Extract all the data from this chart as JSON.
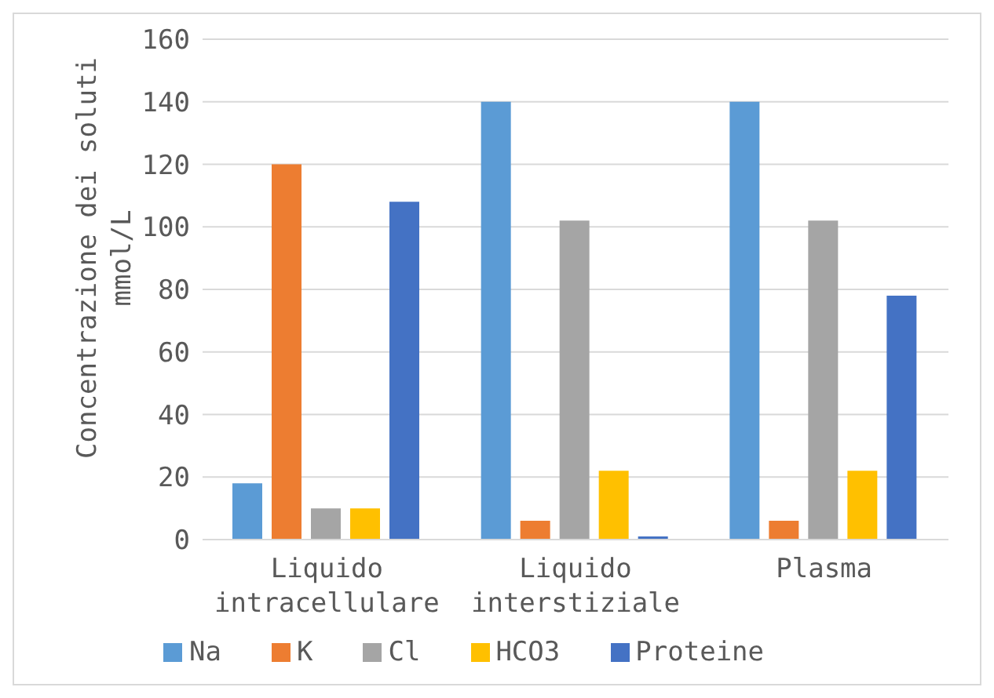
{
  "chart_data": {
    "type": "bar",
    "ylabel": "Concentrazione dei soluti\nmmol/L",
    "categories": [
      "Liquido intracellulare",
      "Liquido interstiziale",
      "Plasma"
    ],
    "series": [
      {
        "name": "Na",
        "color": "#5b9bd5",
        "values": [
          18,
          140,
          140
        ]
      },
      {
        "name": "K",
        "color": "#ed7d31",
        "values": [
          120,
          6,
          6
        ]
      },
      {
        "name": "Cl",
        "color": "#a5a5a5",
        "values": [
          10,
          102,
          102
        ]
      },
      {
        "name": "HCO3",
        "color": "#ffc000",
        "values": [
          10,
          22,
          22
        ]
      },
      {
        "name": "Proteine",
        "color": "#4472c4",
        "values": [
          108,
          1,
          78
        ]
      }
    ],
    "ylim": [
      0,
      160
    ],
    "yticks": [
      0,
      20,
      40,
      60,
      80,
      100,
      120,
      140,
      160
    ],
    "grid": "y",
    "legend": "bottom"
  }
}
